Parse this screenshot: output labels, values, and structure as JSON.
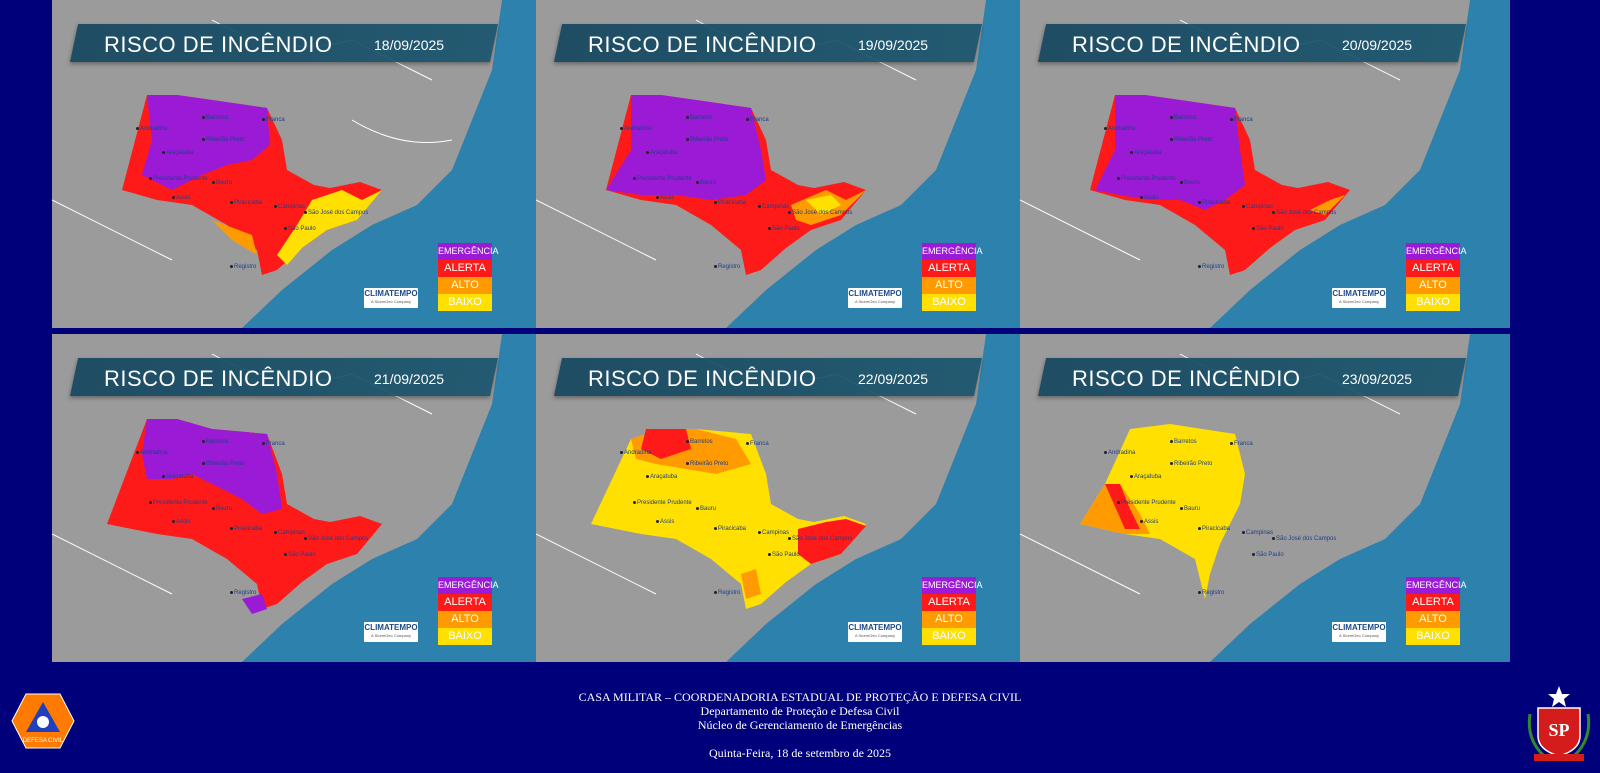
{
  "title": "RISCO DE INCÊNDIO",
  "panels": [
    {
      "date": "18/09/2025",
      "cities": [
        "Andradina",
        "Barretos",
        "Franca",
        "Ribeirão Preto",
        "Araçatuba",
        "Presidente Prudente",
        "Assis",
        "Bauru",
        "Piracicaba",
        "Campinas",
        "São José dos Campos",
        "São Paulo",
        "Registro"
      ]
    },
    {
      "date": "19/09/2025",
      "cities": [
        "Andradina",
        "Barretos",
        "Franca",
        "Ribeirão Preto",
        "Araçatuba",
        "Presidente Prudente",
        "Assis",
        "Bauru",
        "Piracicaba",
        "Campinas",
        "São José dos Campos",
        "São Paulo",
        "Registro"
      ]
    },
    {
      "date": "20/09/2025",
      "cities": [
        "Andradina",
        "Barretos",
        "Franca",
        "Ribeirão Preto",
        "Araçatuba",
        "Presidente Prudente",
        "Assis",
        "Bauru",
        "Piracicaba",
        "Campinas",
        "São José dos Campos",
        "São Paulo",
        "Registro"
      ]
    },
    {
      "date": "21/09/2025",
      "cities": [
        "Andradina",
        "Barretos",
        "Franca",
        "Ribeirão Preto",
        "Araçatuba",
        "Presidente Prudente",
        "Assis",
        "Bauru",
        "Piracicaba",
        "Campinas",
        "São José dos Campos",
        "São Paulo",
        "Registro"
      ]
    },
    {
      "date": "22/09/2025",
      "cities": [
        "Andradina",
        "Barretos",
        "Franca",
        "Ribeirão Preto",
        "Araçatuba",
        "Presidente Prudente",
        "Assis",
        "Bauru",
        "Piracicaba",
        "Campinas",
        "São José dos Campos",
        "São Paulo",
        "Registro"
      ]
    },
    {
      "date": "23/09/2025",
      "cities": [
        "Andradina",
        "Barretos",
        "Franca",
        "Ribeirão Preto",
        "Araçatuba",
        "Presidente Prudente",
        "Assis",
        "Bauru",
        "Piracicaba",
        "Campinas",
        "São José dos Campos",
        "São Paulo",
        "Registro"
      ]
    }
  ],
  "legend": {
    "emergencia": "EMERGÊNCIA",
    "alerta": "ALERTA",
    "alto": "ALTO",
    "baixo": "BAIXO"
  },
  "colors": {
    "emergencia": "#9a1ad6",
    "alerta": "#ff1a1a",
    "alto": "#ff9a00",
    "baixo": "#ffe000",
    "ocean": "#2d82ad",
    "land": "#9b9b9b",
    "page_background": "#00007a"
  },
  "climatempo": {
    "name": "CLIMATEMPO",
    "sub": "A StormGeo Company"
  },
  "footer": {
    "line1": "CASA MILITAR – COORDENADORIA ESTADUAL DE PROTEÇÃO E DEFESA CIVIL",
    "line2": "Departamento de Proteção e Defesa Civil",
    "line3": "Núcleo de Gerenciamento de Emergências",
    "date": "Quinta-Feira, 18 de setembro de 2025"
  },
  "logos": {
    "defesa_civil": "DEFESA CIVIL",
    "sp": "SP"
  }
}
